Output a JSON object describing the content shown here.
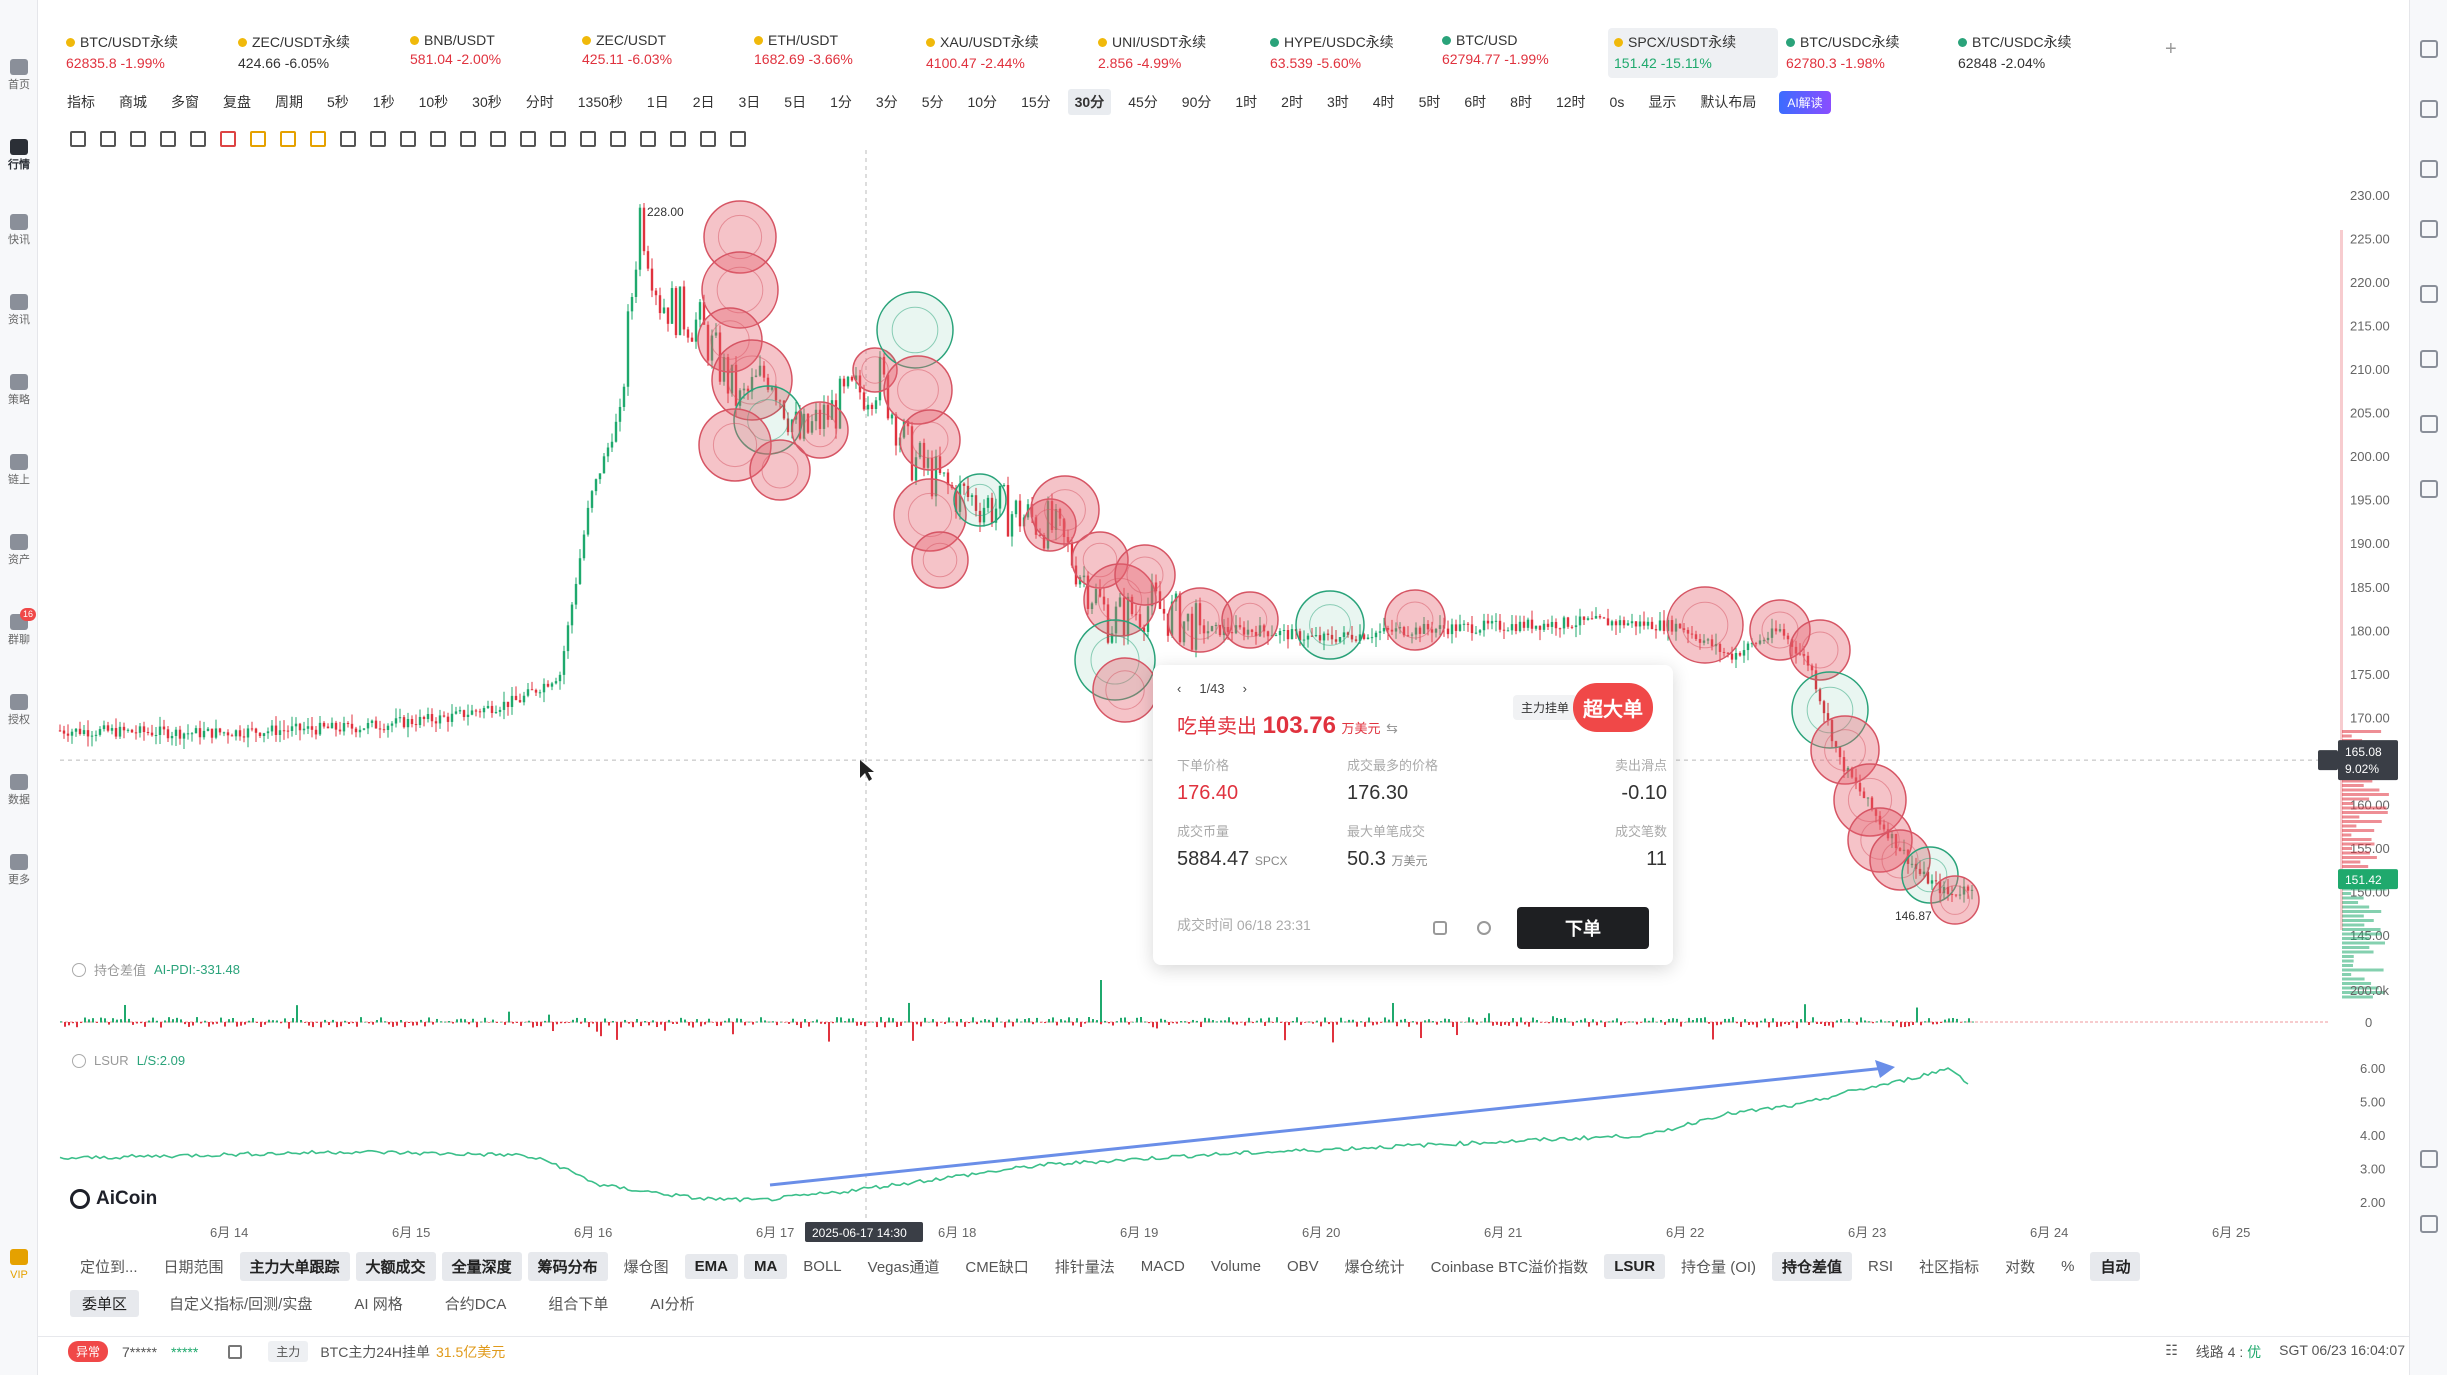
{
  "sidebar": {
    "items": [
      {
        "label": "首页",
        "icon": "home-icon"
      },
      {
        "label": "行情",
        "icon": "chart-icon",
        "active": true
      },
      {
        "label": "快讯",
        "icon": "news-icon"
      },
      {
        "label": "资讯",
        "icon": "document-icon"
      },
      {
        "label": "策略",
        "icon": "robot-icon"
      },
      {
        "label": "链上",
        "icon": "chain-icon"
      },
      {
        "label": "资产",
        "icon": "wallet-icon"
      },
      {
        "label": "群聊",
        "icon": "chat-icon",
        "badge": "16"
      },
      {
        "label": "授权",
        "icon": "key-icon"
      },
      {
        "label": "数据",
        "icon": "data-icon"
      },
      {
        "label": "更多",
        "icon": "grid-icon"
      }
    ],
    "vip": "VIP"
  },
  "tickers": [
    {
      "name": "BTC/USDT永续",
      "value": "62835.8 -1.99%",
      "tone": "down"
    },
    {
      "name": "ZEC/USDT永续",
      "value": "424.66 -6.05%",
      "tone": "neutral"
    },
    {
      "name": "BNB/USDT",
      "value": "581.04 -2.00%",
      "tone": "down"
    },
    {
      "name": "ZEC/USDT",
      "value": "425.11 -6.03%",
      "tone": "down"
    },
    {
      "name": "ETH/USDT",
      "value": "1682.69 -3.66%",
      "tone": "down"
    },
    {
      "name": "XAU/USDT永续",
      "value": "4100.47 -2.44%",
      "tone": "down"
    },
    {
      "name": "UNI/USDT永续",
      "value": "2.856 -4.99%",
      "tone": "down"
    },
    {
      "name": "HYPE/USDC永续",
      "value": "63.539 -5.60%",
      "tone": "down"
    },
    {
      "name": "BTC/USD",
      "value": "62794.77 -1.99%",
      "tone": "down"
    },
    {
      "name": "SPCX/USDT永续",
      "value": "151.42 -15.11%",
      "tone": "up",
      "active": true
    },
    {
      "name": "BTC/USDC永续",
      "value": "62780.3 -1.98%",
      "tone": "down"
    },
    {
      "name": "BTC/USDC永续",
      "value": "62848 -2.04%",
      "tone": "neutral"
    }
  ],
  "periodbar": {
    "left": [
      "指标",
      "商城",
      "多窗",
      "复盘",
      "周期"
    ],
    "periods": [
      "5秒",
      "1秒",
      "10秒",
      "30秒",
      "分时",
      "1350秒",
      "1日",
      "2日",
      "3日",
      "5日",
      "1分",
      "3分",
      "5分",
      "10分",
      "15分",
      "30分",
      "45分",
      "90分",
      "1时",
      "2时",
      "3时",
      "4时",
      "5时",
      "6时",
      "8时",
      "12时"
    ],
    "active": "30分",
    "right": [
      "0s",
      "显示",
      "默认布局"
    ],
    "ai": "AI解读"
  },
  "chart": {
    "y_ticks": [
      "230.00",
      "225.00",
      "220.00",
      "215.00",
      "210.00",
      "205.00",
      "200.00",
      "195.00",
      "190.00",
      "185.00",
      "180.00",
      "175.00",
      "170.00",
      "160.00",
      "155.00",
      "150.00",
      "145.00"
    ],
    "x_ticks": [
      "6月 14",
      "6月 15",
      "6月 16",
      "6月 17",
      "6月 18",
      "6月 19",
      "6月 20",
      "6月 21",
      "6月 22",
      "6月 23",
      "6月 24",
      "6月 25"
    ],
    "high_label": "228.00",
    "low_label": "146.87",
    "crosshair_price": "165.08",
    "crosshair_pct": "9.02%",
    "last_price": "151.42",
    "crosshair_time": "2025-06-17 14:30",
    "vol_ticks": [
      "200.0k",
      "0"
    ],
    "lsur_ticks": [
      "6.00",
      "5.00",
      "4.00",
      "3.00",
      "2.00"
    ]
  },
  "popup": {
    "page": "1/43",
    "title_prefix": "吃单卖出",
    "amount": "103.76",
    "unit": "万美元",
    "tag1": "主力挂单",
    "tag2": "超大单",
    "fields": [
      {
        "k": "下单价格",
        "v": "176.40",
        "red": true
      },
      {
        "k": "成交最多的价格",
        "v": "176.30"
      },
      {
        "k": "卖出滑点",
        "v": "-0.10"
      },
      {
        "k": "成交币量",
        "v": "5884.47",
        "u": "SPCX"
      },
      {
        "k": "最大单笔成交",
        "v": "50.3",
        "u": "万美元"
      },
      {
        "k": "成交笔数",
        "v": "11"
      }
    ],
    "time": "成交时间 06/18 23:31",
    "order_button": "下单"
  },
  "indicators": {
    "pos_label": "持仓差值",
    "pos_value": "AI-PDI:-331.48",
    "lsur_label": "LSUR",
    "lsur_value": "L/S:2.09"
  },
  "logo": "AiCoin",
  "indtabs": [
    "定位到...",
    "日期范围",
    "主力大单跟踪",
    "大额成交",
    "全量深度",
    "筹码分布",
    "爆仓图",
    "EMA",
    "MA",
    "BOLL",
    "Vegas通道",
    "CME缺口",
    "排针量法",
    "MACD",
    "Volume",
    "OBV",
    "爆仓统计",
    "Coinbase BTC溢价指数",
    "LSUR",
    "持仓量 (OI)",
    "持仓差值",
    "RSI",
    "社区指标",
    "对数",
    "%",
    "自动"
  ],
  "indtabs_highlight": [
    "主力大单跟踪",
    "大额成交",
    "全量深度",
    "筹码分布",
    "EMA",
    "MA",
    "LSUR",
    "持仓差值",
    "自动"
  ],
  "bottomtabs": [
    "委单区",
    "自定义指标/回测/实盘",
    "AI 网格",
    "合约DCA",
    "组合下单",
    "AI分析"
  ],
  "statusbar": {
    "badge": "异常",
    "mask1": "7*****",
    "mask2": "*****",
    "main_tag": "主力",
    "text": "BTC主力24H挂单",
    "value": "31.5亿美元",
    "line": "线路 4 :",
    "line_status": "优",
    "time": "SGT 06/23 16:04:07"
  },
  "colors": {
    "up": "#1fa96d",
    "down": "#e0323e",
    "bubble": "#e5606e",
    "trend_arrow": "#6a8ee8"
  }
}
